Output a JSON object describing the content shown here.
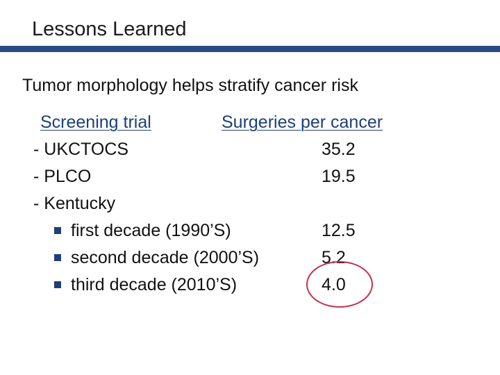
{
  "slide": {
    "title": "Lessons Learned",
    "subtitle": "Tumor morphology helps stratify cancer risk"
  },
  "table": {
    "header": {
      "label": "Screening trial",
      "value": "Surgeries per cancer"
    },
    "rows": [
      {
        "label": "- UKCTOCS",
        "value": "35.2"
      },
      {
        "label": "- PLCO",
        "value": "19.5"
      },
      {
        "label": "- Kentucky",
        "value": ""
      },
      {
        "label": "first  decade (1990’S)",
        "value": "12.5"
      },
      {
        "label": "second decade (2000’S)",
        "value": "5.2"
      },
      {
        "label": "third decade (2010’S)",
        "value": "4.0"
      }
    ]
  },
  "colors": {
    "rule": "#2b4c7e",
    "header_text": "#1f3f77",
    "bullet": "#1f3f77",
    "highlight_circle": "#c4324b"
  }
}
